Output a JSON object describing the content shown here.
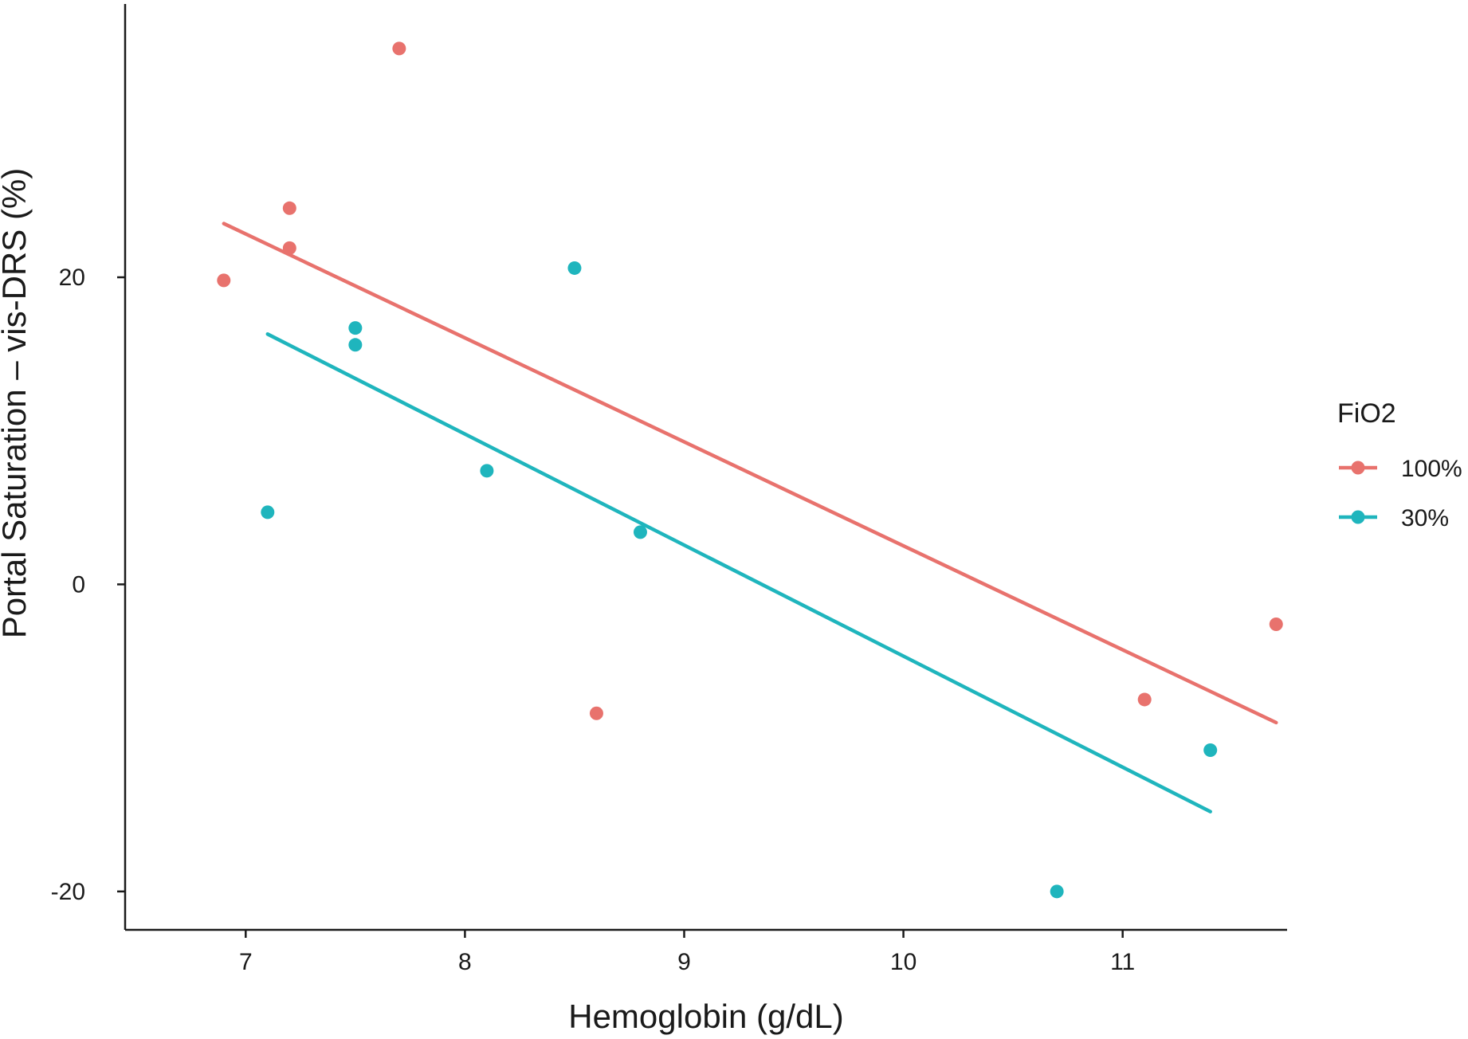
{
  "chart_data": {
    "type": "scatter",
    "title": "",
    "xlabel": "Hemoglobin (g/dL)",
    "ylabel": "Portal Saturation – vis-DRS (%)",
    "xlim": [
      6.45,
      11.75
    ],
    "ylim": [
      -22.5,
      37.8
    ],
    "xticks": [
      7,
      8,
      9,
      10,
      11
    ],
    "yticks": [
      -20,
      0,
      20
    ],
    "xtick_labels": [
      "7",
      "8",
      "9",
      "10",
      "11"
    ],
    "ytick_labels": [
      "-20",
      "0",
      "20"
    ],
    "grid": false,
    "legend": {
      "title": "FiO2",
      "position": "right"
    },
    "series": [
      {
        "name": "100%",
        "color": "#E8726D",
        "points": [
          {
            "x": 6.9,
            "y": 19.8
          },
          {
            "x": 7.2,
            "y": 24.5
          },
          {
            "x": 7.2,
            "y": 21.9
          },
          {
            "x": 7.7,
            "y": 34.9
          },
          {
            "x": 8.6,
            "y": -8.4
          },
          {
            "x": 11.1,
            "y": -7.5
          },
          {
            "x": 11.7,
            "y": -2.6
          }
        ],
        "fit": {
          "x": [
            6.9,
            11.7
          ],
          "y": [
            23.5,
            -9.0
          ]
        }
      },
      {
        "name": "30%",
        "color": "#1FB5BD",
        "points": [
          {
            "x": 7.1,
            "y": 4.7
          },
          {
            "x": 7.5,
            "y": 16.7
          },
          {
            "x": 7.5,
            "y": 15.6
          },
          {
            "x": 8.1,
            "y": 7.4
          },
          {
            "x": 8.5,
            "y": 20.6
          },
          {
            "x": 8.8,
            "y": 3.4
          },
          {
            "x": 10.7,
            "y": -20.0
          },
          {
            "x": 11.4,
            "y": -10.8
          }
        ],
        "fit": {
          "x": [
            7.1,
            11.4
          ],
          "y": [
            16.3,
            -14.8
          ]
        }
      }
    ]
  }
}
